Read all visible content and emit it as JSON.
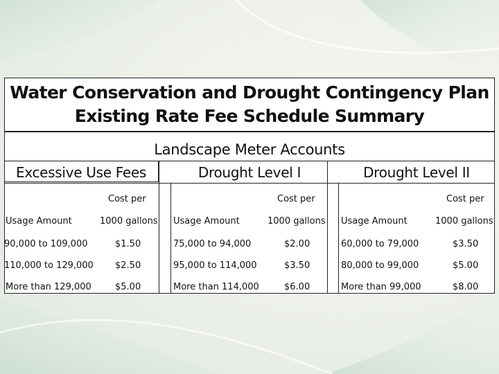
{
  "title": {
    "line1": "Water Conservation and Drought Contingency Plan",
    "line2": "Existing Rate Fee Schedule Summary"
  },
  "subtitle": "Landscape Meter Accounts",
  "sections": [
    {
      "heading": "Excessive Use Fees",
      "cost_label": "Cost per",
      "col_usage": "Usage Amount",
      "col_cost": "1000 gallons",
      "rows": [
        {
          "usage": "90,000 to 109,000",
          "cost": "$1.50"
        },
        {
          "usage": "110,000 to 129,000",
          "cost": "$2.50"
        },
        {
          "usage": "More than 129,000",
          "cost": "$5.00"
        }
      ]
    },
    {
      "heading": "Drought Level I",
      "cost_label": "Cost per",
      "col_usage": "Usage Amount",
      "col_cost": "1000 gallons",
      "rows": [
        {
          "usage": "75,000 to 94,000",
          "cost": "$2.00"
        },
        {
          "usage": "95,000 to 114,000",
          "cost": "$3.50"
        },
        {
          "usage": "More than 114,000",
          "cost": "$6.00"
        }
      ]
    },
    {
      "heading": "Drought Level II",
      "cost_label": "Cost per",
      "col_usage": "Usage Amount",
      "col_cost": "1000 gallons",
      "rows": [
        {
          "usage": "60,000 to 79,000",
          "cost": "$3.50"
        },
        {
          "usage": "80,000 to 99,000",
          "cost": "$5.00"
        },
        {
          "usage": "More than 99,000",
          "cost": "$8.00"
        }
      ]
    }
  ]
}
